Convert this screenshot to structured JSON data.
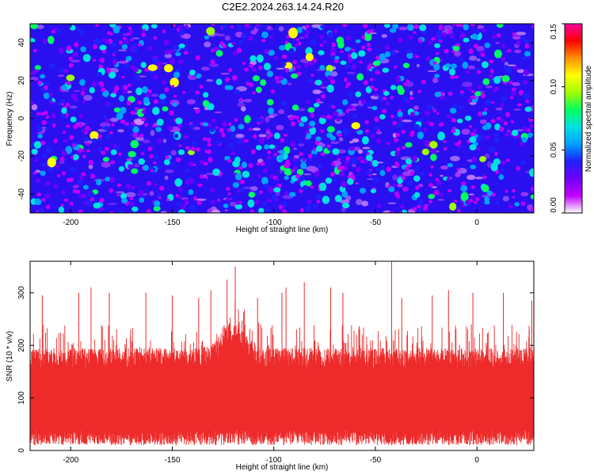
{
  "title": "C2E2.2024.263.14.24.R20",
  "colors": {
    "background": "#ffffff",
    "snr_trace": "#ee2a2a",
    "axis": "#000000"
  },
  "chart_data": [
    {
      "type": "heatmap",
      "xlabel": "Height of straight line (km)",
      "ylabel": "Frequency (Hz)",
      "xlim": [
        -220,
        28
      ],
      "ylim": [
        -50,
        50
      ],
      "xticks": [
        -200,
        -150,
        -100,
        -50,
        0
      ],
      "yticks": [
        -40,
        -20,
        0,
        20,
        40
      ],
      "colorbar": {
        "label": "Normalized spectral amplitude",
        "range": [
          0,
          0.15
        ],
        "ticks": [
          "0.00",
          "0.05",
          "0.10",
          "0.15"
        ],
        "colormap": [
          "#ffffff",
          "#c000ff",
          "#7000ff",
          "#2020ff",
          "#00a0ff",
          "#00e0e0",
          "#00ff60",
          "#a0ff00",
          "#ffff00",
          "#ff9000",
          "#ff0000",
          "#ff00a0"
        ]
      },
      "values": "dense speckle of normalized spectral amplitude, mostly 0.01-0.06 with sparse peaks near 0.10-0.12"
    },
    {
      "type": "line",
      "xlabel": "Height of straight line (km)",
      "ylabel": "SNR (10 * v/v)",
      "xlim": [
        -220,
        28
      ],
      "ylim": [
        0,
        360
      ],
      "xticks": [
        -200,
        -150,
        -100,
        -50,
        0
      ],
      "yticks": [
        0,
        100,
        200,
        300
      ],
      "series": [
        {
          "baseline_low": 40,
          "baseline_high": 175,
          "typical_spike_max": 240,
          "peaks": [
            {
              "x": -214,
              "y": 295
            },
            {
              "x": -196,
              "y": 300
            },
            {
              "x": -190,
              "y": 310
            },
            {
              "x": -181,
              "y": 300
            },
            {
              "x": -163,
              "y": 300
            },
            {
              "x": -150,
              "y": 295
            },
            {
              "x": -137,
              "y": 290
            },
            {
              "x": -131,
              "y": 305
            },
            {
              "x": -123,
              "y": 325
            },
            {
              "x": -119,
              "y": 350
            },
            {
              "x": -108,
              "y": 290
            },
            {
              "x": -96,
              "y": 300
            },
            {
              "x": -94,
              "y": 310
            },
            {
              "x": -85,
              "y": 320
            },
            {
              "x": -72,
              "y": 310
            },
            {
              "x": -66,
              "y": 300
            },
            {
              "x": -42,
              "y": 360
            },
            {
              "x": -37,
              "y": 290
            },
            {
              "x": -22,
              "y": 295
            },
            {
              "x": -14,
              "y": 305
            },
            {
              "x": -2,
              "y": 300
            },
            {
              "x": 13,
              "y": 300
            },
            {
              "x": 27,
              "y": 285
            }
          ]
        }
      ]
    }
  ]
}
